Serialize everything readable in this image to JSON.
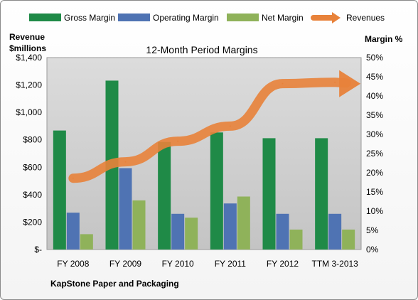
{
  "chart_data": {
    "type": "bar",
    "title": "12-Month Period Margins",
    "categories": [
      "FY 2008",
      "FY 2009",
      "FY 2010",
      "FY 2011",
      "FY 2012",
      "TTM 3-2013"
    ],
    "y_left": {
      "label_line1": "Revenue",
      "label_line2": "$millions",
      "ylim": [
        0,
        1400
      ],
      "ticks": [
        0,
        200,
        400,
        600,
        800,
        1000,
        1200,
        1400
      ],
      "tick_labels": [
        "$-",
        "$200",
        "$400",
        "$600",
        "$800",
        "$1,000",
        "$1,200",
        "$1,400"
      ]
    },
    "y_right": {
      "label": "Margin %",
      "ylim": [
        0,
        50
      ],
      "ticks": [
        0,
        5,
        10,
        15,
        20,
        25,
        30,
        35,
        40,
        45,
        50
      ],
      "tick_labels": [
        "0%",
        "5%",
        "10%",
        "15%",
        "20%",
        "25%",
        "30%",
        "35%",
        "40%",
        "45%",
        "50%"
      ]
    },
    "series": [
      {
        "name": "Gross Margin",
        "axis": "right",
        "color": "#1f8a47",
        "values": [
          31,
          44,
          28,
          30.5,
          29,
          29
        ]
      },
      {
        "name": "Operating Margin",
        "axis": "right",
        "color": "#4f73b3",
        "values": [
          9.6,
          21.2,
          9.3,
          12,
          9.3,
          9.3
        ]
      },
      {
        "name": "Net Margin",
        "axis": "right",
        "color": "#8fb25a",
        "values": [
          4,
          12.8,
          8.3,
          13.8,
          5.2,
          5.2
        ]
      },
      {
        "name": "Revenues",
        "axis": "left",
        "type": "line",
        "color": "#e8823a",
        "values": [
          520,
          640,
          790,
          900,
          1210,
          1220
        ]
      }
    ],
    "legend_position": "top",
    "grid": false
  },
  "footer": {
    "company": "KapStone Paper and Packaging"
  }
}
